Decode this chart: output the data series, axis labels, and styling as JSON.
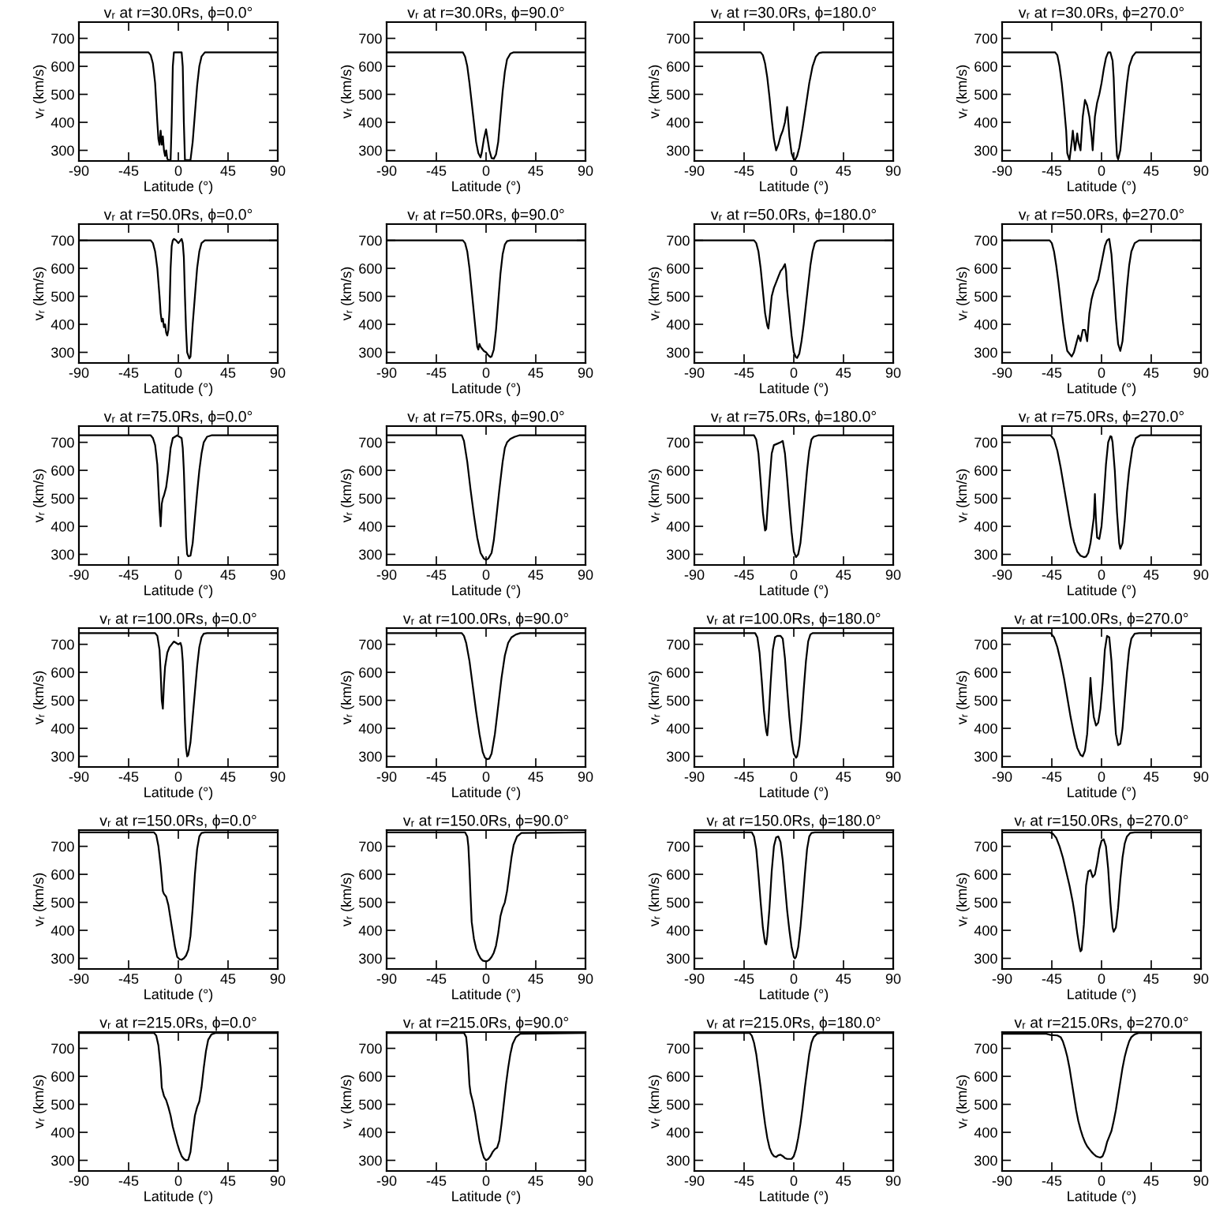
{
  "chart_data": [
    {
      "type": "line",
      "title": "vᵣ at r=30.0Rs, ϕ=0.0°",
      "xlabel": "Latitude (°)",
      "ylabel": "vᵣ (km/s)",
      "color": "#000000",
      "xlim": [
        -90,
        90
      ],
      "ylim": [
        262,
        758
      ],
      "xticks": [
        -90,
        -45,
        0,
        45,
        90
      ],
      "yticks": [
        300,
        400,
        500,
        600,
        700
      ],
      "x": [
        -90,
        -27,
        -25,
        -23,
        -21,
        -20,
        -19,
        -18,
        -17,
        -16,
        -15,
        -14,
        -13,
        -12,
        -11,
        -10,
        -9,
        -7,
        -6,
        -5,
        -4,
        3,
        4,
        5,
        6,
        11,
        13,
        15,
        17,
        19,
        21,
        24,
        90
      ],
      "values": [
        650,
        650,
        640,
        610,
        540,
        470,
        400,
        340,
        320,
        370,
        320,
        350,
        300,
        280,
        300,
        270,
        265,
        265,
        400,
        600,
        650,
        650,
        600,
        400,
        265,
        265,
        330,
        430,
        530,
        600,
        635,
        650,
        650
      ]
    },
    {
      "type": "line",
      "title": "vᵣ at r=30.0Rs, ϕ=90.0°",
      "xlabel": "Latitude (°)",
      "ylabel": "vᵣ (km/s)",
      "color": "#000000",
      "xlim": [
        -90,
        90
      ],
      "ylim": [
        262,
        758
      ],
      "xticks": [
        -90,
        -45,
        0,
        45,
        90
      ],
      "yticks": [
        300,
        400,
        500,
        600,
        700
      ],
      "x": [
        -90,
        -21,
        -19,
        -17,
        -15,
        -13,
        -11,
        -9,
        -7,
        -5,
        -4,
        -2,
        0,
        1,
        3,
        5,
        7,
        9,
        11,
        13,
        15,
        17,
        19,
        22,
        25,
        90
      ],
      "values": [
        650,
        650,
        635,
        600,
        540,
        470,
        400,
        330,
        290,
        275,
        290,
        340,
        375,
        350,
        300,
        272,
        270,
        285,
        330,
        420,
        510,
        580,
        625,
        645,
        650,
        650
      ]
    },
    {
      "type": "line",
      "title": "vᵣ at r=30.0Rs, ϕ=180.0°",
      "xlabel": "Latitude (°)",
      "ylabel": "vᵣ (km/s)",
      "color": "#000000",
      "xlim": [
        -90,
        90
      ],
      "ylim": [
        262,
        758
      ],
      "xticks": [
        -90,
        -45,
        0,
        45,
        90
      ],
      "yticks": [
        300,
        400,
        500,
        600,
        700
      ],
      "x": [
        -90,
        -30,
        -28,
        -26,
        -24,
        -22,
        -20,
        -18,
        -16,
        -14,
        -12,
        -10,
        -8,
        -6,
        -4,
        -2,
        0,
        1,
        3,
        5,
        8,
        11,
        14,
        17,
        20,
        23,
        26,
        90
      ],
      "values": [
        650,
        650,
        640,
        610,
        560,
        490,
        410,
        340,
        300,
        320,
        350,
        370,
        400,
        455,
        350,
        290,
        268,
        265,
        280,
        310,
        380,
        460,
        540,
        600,
        635,
        648,
        650,
        650
      ]
    },
    {
      "type": "line",
      "title": "vᵣ at r=30.0Rs, ϕ=270.0°",
      "xlabel": "Latitude (°)",
      "ylabel": "vᵣ (km/s)",
      "color": "#000000",
      "xlim": [
        -90,
        90
      ],
      "ylim": [
        262,
        758
      ],
      "xticks": [
        -90,
        -45,
        0,
        45,
        90
      ],
      "yticks": [
        300,
        400,
        500,
        600,
        700
      ],
      "x": [
        -90,
        -42,
        -40,
        -38,
        -36,
        -34,
        -32,
        -31,
        -29,
        -27,
        -26,
        -24,
        -22,
        -21,
        -19,
        -17,
        -15,
        -13,
        -11,
        -9,
        -8,
        -6,
        -4,
        -2,
        0,
        2,
        4,
        6,
        8,
        10,
        11,
        12,
        13,
        14,
        15,
        17,
        19,
        21,
        23,
        25,
        28,
        31,
        90
      ],
      "values": [
        650,
        650,
        640,
        600,
        540,
        460,
        370,
        290,
        265,
        330,
        370,
        300,
        360,
        330,
        300,
        420,
        480,
        460,
        420,
        350,
        300,
        420,
        470,
        500,
        540,
        590,
        630,
        650,
        650,
        620,
        560,
        450,
        350,
        280,
        268,
        300,
        380,
        460,
        540,
        600,
        635,
        650,
        650
      ]
    },
    {
      "type": "line",
      "title": "vᵣ at r=50.0Rs, ϕ=0.0°",
      "xlabel": "Latitude (°)",
      "ylabel": "vᵣ (km/s)",
      "color": "#000000",
      "xlim": [
        -90,
        90
      ],
      "ylim": [
        262,
        758
      ],
      "xticks": [
        -90,
        -45,
        0,
        45,
        90
      ],
      "yticks": [
        300,
        400,
        500,
        600,
        700
      ],
      "x": [
        -90,
        -25,
        -23,
        -21,
        -19,
        -17,
        -16,
        -15,
        -14,
        -13,
        -12,
        -11,
        -10,
        -9,
        -8,
        -7,
        -6,
        -5,
        -4,
        -2,
        0,
        2,
        3,
        4,
        5,
        6,
        7,
        8,
        10,
        11,
        13,
        15,
        17,
        19,
        21,
        24,
        90
      ],
      "values": [
        700,
        700,
        690,
        660,
        600,
        500,
        440,
        410,
        420,
        390,
        400,
        370,
        360,
        380,
        450,
        600,
        680,
        700,
        705,
        700,
        690,
        700,
        705,
        690,
        640,
        500,
        380,
        300,
        278,
        285,
        400,
        500,
        600,
        660,
        690,
        700,
        700
      ]
    },
    {
      "type": "line",
      "title": "vᵣ at r=50.0Rs, ϕ=90.0°",
      "xlabel": "Latitude (°)",
      "ylabel": "vᵣ (km/s)",
      "color": "#000000",
      "xlim": [
        -90,
        90
      ],
      "ylim": [
        262,
        758
      ],
      "xticks": [
        -90,
        -45,
        0,
        45,
        90
      ],
      "yticks": [
        300,
        400,
        500,
        600,
        700
      ],
      "x": [
        -90,
        -21,
        -19,
        -17,
        -15,
        -13,
        -11,
        -9,
        -8,
        -7,
        -6,
        -5,
        -4,
        -2,
        0,
        2,
        4,
        5,
        7,
        9,
        11,
        13,
        15,
        17,
        19,
        22,
        90
      ],
      "values": [
        700,
        700,
        690,
        660,
        600,
        520,
        440,
        360,
        320,
        310,
        330,
        320,
        315,
        305,
        300,
        290,
        283,
        285,
        310,
        380,
        480,
        580,
        650,
        685,
        697,
        700,
        700
      ]
    },
    {
      "type": "line",
      "title": "vᵣ at r=50.0Rs, ϕ=180.0°",
      "xlabel": "Latitude (°)",
      "ylabel": "vᵣ (km/s)",
      "color": "#000000",
      "xlim": [
        -90,
        90
      ],
      "ylim": [
        262,
        758
      ],
      "xticks": [
        -90,
        -45,
        0,
        45,
        90
      ],
      "yticks": [
        300,
        400,
        500,
        600,
        700
      ],
      "x": [
        -90,
        -36,
        -34,
        -32,
        -30,
        -28,
        -26,
        -24,
        -23,
        -22,
        -20,
        -18,
        -16,
        -14,
        -12,
        -10,
        -8,
        -7,
        -6,
        -4,
        -2,
        0,
        2,
        3,
        5,
        7,
        9,
        11,
        13,
        15,
        17,
        19,
        21,
        24,
        90
      ],
      "values": [
        700,
        700,
        690,
        660,
        600,
        520,
        440,
        395,
        385,
        420,
        500,
        530,
        550,
        570,
        590,
        600,
        615,
        590,
        520,
        440,
        360,
        300,
        282,
        280,
        295,
        340,
        400,
        470,
        540,
        610,
        660,
        690,
        698,
        700,
        700
      ]
    },
    {
      "type": "line",
      "title": "vᵣ at r=50.0Rs, ϕ=270.0°",
      "xlabel": "Latitude (°)",
      "ylabel": "vᵣ (km/s)",
      "color": "#000000",
      "xlim": [
        -90,
        90
      ],
      "ylim": [
        262,
        758
      ],
      "xticks": [
        -90,
        -45,
        0,
        45,
        90
      ],
      "yticks": [
        300,
        400,
        500,
        600,
        700
      ],
      "x": [
        -90,
        -47,
        -45,
        -43,
        -41,
        -39,
        -37,
        -35,
        -33,
        -31,
        -29,
        -27,
        -25,
        -23,
        -21,
        -19,
        -17,
        -15,
        -13,
        -11,
        -9,
        -7,
        -5,
        -3,
        -1,
        1,
        3,
        5,
        7,
        9,
        11,
        13,
        15,
        17,
        19,
        21,
        23,
        25,
        27,
        30,
        34,
        90
      ],
      "values": [
        700,
        700,
        690,
        660,
        610,
        550,
        480,
        410,
        350,
        305,
        295,
        285,
        300,
        330,
        360,
        340,
        380,
        380,
        340,
        440,
        490,
        520,
        540,
        560,
        600,
        640,
        680,
        700,
        705,
        650,
        540,
        420,
        330,
        305,
        340,
        430,
        530,
        610,
        660,
        690,
        700,
        700
      ]
    },
    {
      "type": "line",
      "title": "vᵣ at r=75.0Rs, ϕ=0.0°",
      "xlabel": "Latitude (°)",
      "ylabel": "vᵣ (km/s)",
      "color": "#000000",
      "xlim": [
        -90,
        90
      ],
      "ylim": [
        262,
        758
      ],
      "xticks": [
        -90,
        -45,
        0,
        45,
        90
      ],
      "yticks": [
        300,
        400,
        500,
        600,
        700
      ],
      "x": [
        -90,
        -25,
        -23,
        -21,
        -19,
        -18,
        -17,
        -16,
        -15,
        -14,
        -13,
        -11,
        -9,
        -7,
        -5,
        -3,
        -1,
        1,
        3,
        4,
        5,
        6,
        7,
        8,
        9,
        11,
        13,
        15,
        17,
        19,
        21,
        23,
        26,
        30,
        90
      ],
      "values": [
        725,
        725,
        715,
        690,
        620,
        540,
        460,
        400,
        480,
        500,
        510,
        540,
        600,
        680,
        715,
        720,
        725,
        720,
        715,
        680,
        600,
        480,
        360,
        300,
        293,
        295,
        340,
        430,
        520,
        600,
        660,
        700,
        720,
        725,
        725
      ]
    },
    {
      "type": "line",
      "title": "vᵣ at r=75.0Rs, ϕ=90.0°",
      "xlabel": "Latitude (°)",
      "ylabel": "vᵣ (km/s)",
      "color": "#000000",
      "xlim": [
        -90,
        90
      ],
      "ylim": [
        262,
        758
      ],
      "xticks": [
        -90,
        -45,
        0,
        45,
        90
      ],
      "yticks": [
        300,
        400,
        500,
        600,
        700
      ],
      "x": [
        -90,
        -22,
        -20,
        -17,
        -14,
        -11,
        -8,
        -5,
        -2,
        0,
        2,
        5,
        7,
        9,
        12,
        15,
        17,
        19,
        22,
        26,
        30,
        90
      ],
      "values": [
        725,
        725,
        705,
        630,
        530,
        440,
        360,
        305,
        285,
        280,
        285,
        305,
        350,
        420,
        530,
        630,
        680,
        700,
        712,
        720,
        725,
        725
      ]
    },
    {
      "type": "line",
      "title": "vᵣ at r=75.0Rs, ϕ=180.0°",
      "xlabel": "Latitude (°)",
      "ylabel": "vᵣ (km/s)",
      "color": "#000000",
      "xlim": [
        -90,
        90
      ],
      "ylim": [
        262,
        758
      ],
      "xticks": [
        -90,
        -45,
        0,
        45,
        90
      ],
      "yticks": [
        300,
        400,
        500,
        600,
        700
      ],
      "x": [
        -90,
        -36,
        -34,
        -32,
        -30,
        -28,
        -26,
        -25,
        -24,
        -22,
        -20,
        -18,
        -15,
        -12,
        -10,
        -8,
        -6,
        -4,
        -2,
        0,
        2,
        4,
        6,
        8,
        10,
        12,
        14,
        16,
        18,
        22,
        90
      ],
      "values": [
        725,
        725,
        710,
        660,
        560,
        450,
        385,
        390,
        450,
        560,
        660,
        690,
        695,
        700,
        705,
        660,
        570,
        470,
        380,
        310,
        290,
        300,
        340,
        420,
        510,
        600,
        670,
        710,
        720,
        725,
        725
      ]
    },
    {
      "type": "line",
      "title": "vᵣ at r=75.0Rs, ϕ=270.0°",
      "xlabel": "Latitude (°)",
      "ylabel": "vᵣ (km/s)",
      "color": "#000000",
      "xlim": [
        -90,
        90
      ],
      "ylim": [
        262,
        758
      ],
      "xticks": [
        -90,
        -45,
        0,
        45,
        90
      ],
      "yticks": [
        300,
        400,
        500,
        600,
        700
      ],
      "x": [
        -90,
        -46,
        -43,
        -40,
        -37,
        -34,
        -31,
        -28,
        -25,
        -22,
        -19,
        -16,
        -14,
        -12,
        -10,
        -8,
        -7,
        -6,
        -5,
        -4,
        -2,
        0,
        2,
        4,
        6,
        8,
        9,
        10,
        12,
        14,
        16,
        17,
        19,
        21,
        23,
        25,
        28,
        31,
        35,
        90
      ],
      "values": [
        725,
        725,
        710,
        670,
        610,
        540,
        470,
        400,
        345,
        310,
        295,
        290,
        292,
        305,
        340,
        400,
        430,
        515,
        420,
        360,
        355,
        400,
        500,
        620,
        700,
        722,
        720,
        700,
        600,
        450,
        340,
        320,
        340,
        420,
        520,
        600,
        680,
        715,
        725,
        725
      ]
    },
    {
      "type": "line",
      "title": "vᵣ at r=100.0Rs, ϕ=0.0°",
      "xlabel": "Latitude (°)",
      "ylabel": "vᵣ (km/s)",
      "color": "#000000",
      "xlim": [
        -90,
        90
      ],
      "ylim": [
        262,
        758
      ],
      "xticks": [
        -90,
        -45,
        0,
        45,
        90
      ],
      "yticks": [
        300,
        400,
        500,
        600,
        700
      ],
      "x": [
        -90,
        -21,
        -19,
        -17,
        -16,
        -15,
        -14,
        -13,
        -12,
        -10,
        -8,
        -6,
        -4,
        -2,
        0,
        2,
        3,
        4,
        5,
        6,
        7,
        8,
        9,
        11,
        13,
        15,
        17,
        19,
        21,
        23,
        26,
        90
      ],
      "values": [
        740,
        740,
        730,
        680,
        600,
        500,
        470,
        560,
        620,
        670,
        690,
        700,
        710,
        705,
        700,
        705,
        690,
        640,
        540,
        420,
        330,
        300,
        305,
        350,
        440,
        530,
        620,
        690,
        725,
        738,
        740,
        740
      ]
    },
    {
      "type": "line",
      "title": "vᵣ at r=100.0Rs, ϕ=90.0°",
      "xlabel": "Latitude (°)",
      "ylabel": "vᵣ (km/s)",
      "color": "#000000",
      "xlim": [
        -90,
        90
      ],
      "ylim": [
        262,
        758
      ],
      "xticks": [
        -90,
        -45,
        0,
        45,
        90
      ],
      "yticks": [
        300,
        400,
        500,
        600,
        700
      ],
      "x": [
        -90,
        -22,
        -20,
        -18,
        -15,
        -12,
        -9,
        -6,
        -3,
        -1,
        1,
        3,
        5,
        8,
        11,
        14,
        17,
        20,
        23,
        27,
        31,
        90
      ],
      "values": [
        740,
        740,
        730,
        705,
        640,
        550,
        460,
        380,
        315,
        295,
        290,
        292,
        310,
        380,
        480,
        580,
        660,
        705,
        725,
        735,
        740,
        740
      ]
    },
    {
      "type": "line",
      "title": "vᵣ at r=100.0Rs, ϕ=180.0°",
      "xlabel": "Latitude (°)",
      "ylabel": "vᵣ (km/s)",
      "color": "#000000",
      "xlim": [
        -90,
        90
      ],
      "ylim": [
        262,
        758
      ],
      "xticks": [
        -90,
        -45,
        0,
        45,
        90
      ],
      "yticks": [
        300,
        400,
        500,
        600,
        700
      ],
      "x": [
        -90,
        -35,
        -33,
        -31,
        -29,
        -27,
        -25,
        -24,
        -23,
        -21,
        -19,
        -17,
        -15,
        -12,
        -10,
        -8,
        -6,
        -4,
        -2,
        0,
        2,
        3,
        5,
        7,
        9,
        11,
        13,
        15,
        17,
        20,
        90
      ],
      "values": [
        740,
        740,
        725,
        670,
        570,
        460,
        390,
        375,
        420,
        560,
        680,
        725,
        730,
        730,
        720,
        650,
        540,
        440,
        360,
        310,
        295,
        300,
        340,
        430,
        540,
        640,
        710,
        735,
        740,
        740,
        740
      ]
    },
    {
      "type": "line",
      "title": "vᵣ at r=100.0Rs, ϕ=270.0°",
      "xlabel": "Latitude (°)",
      "ylabel": "vᵣ (km/s)",
      "color": "#000000",
      "xlim": [
        -90,
        90
      ],
      "ylim": [
        262,
        758
      ],
      "xticks": [
        -90,
        -45,
        0,
        45,
        90
      ],
      "yticks": [
        300,
        400,
        500,
        600,
        700
      ],
      "x": [
        -90,
        -46,
        -43,
        -40,
        -37,
        -34,
        -31,
        -28,
        -25,
        -22,
        -19,
        -17,
        -15,
        -13,
        -11,
        -10,
        -9,
        -7,
        -5,
        -3,
        -1,
        1,
        3,
        5,
        7,
        9,
        11,
        13,
        15,
        17,
        19,
        21,
        23,
        25,
        27,
        30,
        34,
        90
      ],
      "values": [
        740,
        740,
        725,
        690,
        640,
        580,
        510,
        440,
        380,
        330,
        305,
        300,
        320,
        380,
        500,
        580,
        520,
        440,
        410,
        420,
        470,
        560,
        680,
        730,
        725,
        640,
        500,
        380,
        340,
        345,
        400,
        500,
        600,
        680,
        720,
        738,
        740,
        740
      ]
    },
    {
      "type": "line",
      "title": "vᵣ at r=150.0Rs, ϕ=0.0°",
      "xlabel": "Latitude (°)",
      "ylabel": "vᵣ (km/s)",
      "color": "#000000",
      "xlim": [
        -90,
        90
      ],
      "ylim": [
        262,
        758
      ],
      "xticks": [
        -90,
        -45,
        0,
        45,
        90
      ],
      "yticks": [
        300,
        400,
        500,
        600,
        700
      ],
      "x": [
        -90,
        -22,
        -20,
        -18,
        -16,
        -14,
        -13,
        -11,
        -9,
        -7,
        -5,
        -3,
        -1,
        1,
        3,
        5,
        7,
        9,
        11,
        13,
        15,
        17,
        19,
        21,
        24,
        90
      ],
      "values": [
        750,
        750,
        740,
        700,
        630,
        540,
        530,
        520,
        490,
        440,
        390,
        340,
        305,
        297,
        295,
        300,
        310,
        330,
        380,
        480,
        600,
        690,
        735,
        748,
        750,
        750
      ]
    },
    {
      "type": "line",
      "title": "vᵣ at r=150.0Rs, ϕ=90.0°",
      "xlabel": "Latitude (°)",
      "ylabel": "vᵣ (km/s)",
      "color": "#000000",
      "xlim": [
        -90,
        90
      ],
      "ylim": [
        262,
        758
      ],
      "xticks": [
        -90,
        -45,
        0,
        45,
        90
      ],
      "yticks": [
        300,
        400,
        500,
        600,
        700
      ],
      "x": [
        -90,
        -19,
        -17,
        -16,
        -15,
        -14,
        -13,
        -11,
        -9,
        -7,
        -5,
        -3,
        -1,
        1,
        3,
        5,
        7,
        9,
        11,
        13,
        15,
        17,
        19,
        21,
        23,
        25,
        28,
        32,
        90
      ],
      "values": [
        750,
        750,
        735,
        700,
        620,
        520,
        430,
        370,
        335,
        315,
        300,
        292,
        290,
        290,
        295,
        305,
        320,
        345,
        390,
        450,
        480,
        500,
        540,
        600,
        660,
        705,
        735,
        748,
        750
      ]
    },
    {
      "type": "line",
      "title": "vᵣ at r=150.0Rs, ϕ=180.0°",
      "xlabel": "Latitude (°)",
      "ylabel": "vᵣ (km/s)",
      "color": "#000000",
      "xlim": [
        -90,
        90
      ],
      "ylim": [
        262,
        758
      ],
      "xticks": [
        -90,
        -45,
        0,
        45,
        90
      ],
      "yticks": [
        300,
        400,
        500,
        600,
        700
      ],
      "x": [
        -90,
        -38,
        -36,
        -34,
        -32,
        -30,
        -28,
        -26,
        -25,
        -24,
        -22,
        -20,
        -18,
        -16,
        -14,
        -12,
        -10,
        -8,
        -6,
        -4,
        -2,
        0,
        1,
        2,
        4,
        6,
        8,
        10,
        12,
        14,
        16,
        19,
        90
      ],
      "values": [
        750,
        750,
        735,
        690,
        600,
        500,
        410,
        355,
        350,
        380,
        480,
        610,
        700,
        732,
        735,
        715,
        650,
        560,
        470,
        400,
        340,
        305,
        300,
        305,
        340,
        410,
        500,
        600,
        690,
        735,
        748,
        750,
        750
      ]
    },
    {
      "type": "line",
      "title": "vᵣ at r=150.0Rs, ϕ=270.0°",
      "xlabel": "Latitude (°)",
      "ylabel": "vᵣ (km/s)",
      "color": "#000000",
      "xlim": [
        -90,
        90
      ],
      "ylim": [
        262,
        758
      ],
      "xticks": [
        -90,
        -45,
        0,
        45,
        90
      ],
      "yticks": [
        300,
        400,
        500,
        600,
        700
      ],
      "x": [
        -90,
        -47,
        -44,
        -41,
        -38,
        -35,
        -32,
        -29,
        -26,
        -24,
        -22,
        -20,
        -19,
        -18,
        -16,
        -14,
        -12,
        -10,
        -8,
        -6,
        -4,
        -2,
        0,
        2,
        4,
        6,
        8,
        10,
        11,
        13,
        15,
        17,
        19,
        21,
        23,
        26,
        30,
        90
      ],
      "values": [
        750,
        750,
        745,
        730,
        700,
        660,
        610,
        560,
        500,
        450,
        390,
        340,
        325,
        330,
        420,
        560,
        610,
        615,
        590,
        600,
        640,
        690,
        720,
        725,
        700,
        620,
        500,
        410,
        395,
        410,
        480,
        580,
        660,
        710,
        735,
        748,
        750,
        750
      ]
    },
    {
      "type": "line",
      "title": "vᵣ at r=215.0Rs, ϕ=0.0°",
      "xlabel": "Latitude (°)",
      "ylabel": "vᵣ (km/s)",
      "color": "#000000",
      "xlim": [
        -90,
        90
      ],
      "ylim": [
        262,
        758
      ],
      "xticks": [
        -90,
        -45,
        0,
        45,
        90
      ],
      "yticks": [
        300,
        400,
        500,
        600,
        700
      ],
      "x": [
        -90,
        -22,
        -20,
        -18,
        -16,
        -15,
        -13,
        -11,
        -9,
        -7,
        -5,
        -3,
        -1,
        1,
        3,
        5,
        7,
        9,
        11,
        13,
        15,
        17,
        19,
        21,
        23,
        25,
        27,
        30,
        34,
        90
      ],
      "values": [
        755,
        755,
        745,
        710,
        630,
        560,
        530,
        515,
        490,
        460,
        420,
        390,
        360,
        335,
        315,
        305,
        300,
        302,
        330,
        400,
        460,
        490,
        510,
        560,
        630,
        690,
        730,
        750,
        755,
        755
      ]
    },
    {
      "type": "line",
      "title": "vᵣ at r=215.0Rs, ϕ=90.0°",
      "xlabel": "Latitude (°)",
      "ylabel": "vᵣ (km/s)",
      "color": "#000000",
      "xlim": [
        -90,
        90
      ],
      "ylim": [
        262,
        758
      ],
      "xticks": [
        -90,
        -45,
        0,
        45,
        90
      ],
      "yticks": [
        300,
        400,
        500,
        600,
        700
      ],
      "x": [
        -90,
        -20,
        -18,
        -17,
        -16,
        -15,
        -14,
        -12,
        -10,
        -8,
        -6,
        -4,
        -2,
        0,
        2,
        4,
        6,
        8,
        10,
        12,
        14,
        16,
        18,
        20,
        22,
        24,
        27,
        31,
        90
      ],
      "values": [
        755,
        755,
        740,
        700,
        640,
        570,
        540,
        510,
        470,
        420,
        370,
        335,
        310,
        300,
        305,
        315,
        330,
        340,
        345,
        370,
        430,
        500,
        570,
        630,
        680,
        715,
        740,
        752,
        755
      ]
    },
    {
      "type": "line",
      "title": "vᵣ at r=215.0Rs, ϕ=180.0°",
      "xlabel": "Latitude (°)",
      "ylabel": "vᵣ (km/s)",
      "color": "#000000",
      "xlim": [
        -90,
        90
      ],
      "ylim": [
        262,
        758
      ],
      "xticks": [
        -90,
        -45,
        0,
        45,
        90
      ],
      "yticks": [
        300,
        400,
        500,
        600,
        700
      ],
      "x": [
        -90,
        -40,
        -38,
        -36,
        -34,
        -32,
        -30,
        -28,
        -26,
        -24,
        -22,
        -20,
        -18,
        -16,
        -14,
        -12,
        -10,
        -8,
        -6,
        -4,
        -2,
        0,
        2,
        4,
        6,
        8,
        10,
        12,
        14,
        16,
        18,
        21,
        24,
        90
      ],
      "values": [
        755,
        755,
        745,
        720,
        680,
        620,
        560,
        490,
        430,
        380,
        345,
        325,
        315,
        312,
        318,
        320,
        315,
        308,
        305,
        305,
        305,
        315,
        340,
        380,
        430,
        490,
        560,
        620,
        680,
        720,
        740,
        752,
        755,
        755
      ]
    },
    {
      "type": "line",
      "title": "vᵣ at r=215.0Rs, ϕ=270.0°",
      "xlabel": "Latitude (°)",
      "ylabel": "vᵣ (km/s)",
      "color": "#000000",
      "xlim": [
        -90,
        90
      ],
      "ylim": [
        262,
        758
      ],
      "xticks": [
        -90,
        -45,
        0,
        45,
        90
      ],
      "yticks": [
        300,
        400,
        500,
        600,
        700
      ],
      "x": [
        -90,
        -50,
        -46,
        -40,
        -37,
        -35,
        -33,
        -31,
        -29,
        -27,
        -25,
        -23,
        -21,
        -19,
        -17,
        -15,
        -13,
        -11,
        -9,
        -7,
        -5,
        -3,
        -1,
        1,
        3,
        5,
        7,
        9,
        11,
        13,
        15,
        17,
        19,
        21,
        23,
        25,
        27,
        30,
        34,
        90
      ],
      "values": [
        752,
        752,
        748,
        746,
        740,
        725,
        700,
        670,
        630,
        580,
        530,
        480,
        440,
        410,
        385,
        365,
        350,
        340,
        330,
        322,
        315,
        312,
        310,
        315,
        335,
        365,
        385,
        405,
        440,
        480,
        530,
        580,
        630,
        670,
        700,
        725,
        740,
        750,
        755,
        755
      ]
    }
  ]
}
